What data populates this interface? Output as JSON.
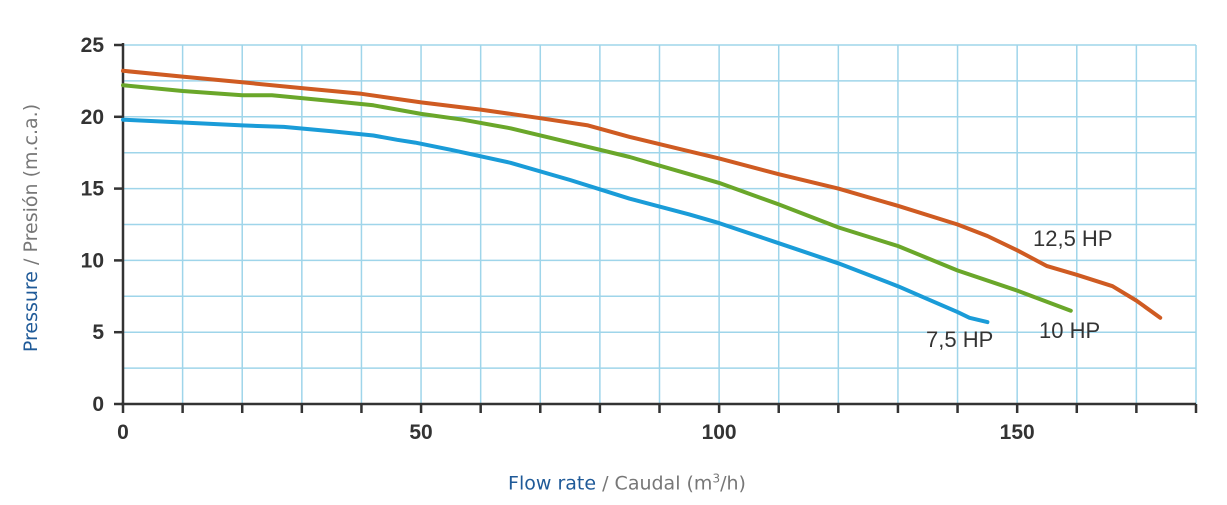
{
  "chart_data": {
    "type": "line",
    "xlabel": {
      "primary": "Flow rate",
      "separator": " / ",
      "secondary_before_sup": "Caudal (m",
      "secondary_sup": "3",
      "secondary_after_sup": "/h)"
    },
    "ylabel": {
      "primary": "Pressure",
      "separator": " / ",
      "secondary": "Presión (m.c.a.)"
    },
    "xlim": [
      0,
      180
    ],
    "ylim": [
      0,
      25
    ],
    "x_ticks": [
      0,
      50,
      100,
      150
    ],
    "x_minor_step": 10,
    "y_ticks": [
      0,
      5,
      10,
      15,
      20,
      25
    ],
    "grid": true,
    "series": [
      {
        "name": "7,5 HP",
        "color": "#1a9cd8",
        "points": [
          [
            0,
            19.8
          ],
          [
            10,
            19.6
          ],
          [
            20,
            19.4
          ],
          [
            27,
            19.3
          ],
          [
            35,
            19.0
          ],
          [
            42,
            18.7
          ],
          [
            46,
            18.4
          ],
          [
            49,
            18.2
          ],
          [
            55,
            17.7
          ],
          [
            65,
            16.8
          ],
          [
            75,
            15.6
          ],
          [
            85,
            14.3
          ],
          [
            95,
            13.2
          ],
          [
            100,
            12.6
          ],
          [
            110,
            11.2
          ],
          [
            120,
            9.8
          ],
          [
            130,
            8.2
          ],
          [
            135,
            7.3
          ],
          [
            140,
            6.4
          ],
          [
            142,
            6.0
          ],
          [
            145,
            5.7
          ]
        ]
      },
      {
        "name": "10 HP",
        "color": "#6aa72a",
        "points": [
          [
            0,
            22.2
          ],
          [
            10,
            21.8
          ],
          [
            20,
            21.5
          ],
          [
            25,
            21.5
          ],
          [
            35,
            21.1
          ],
          [
            42,
            20.8
          ],
          [
            50,
            20.2
          ],
          [
            57,
            19.8
          ],
          [
            65,
            19.2
          ],
          [
            75,
            18.2
          ],
          [
            85,
            17.2
          ],
          [
            95,
            16.0
          ],
          [
            100,
            15.4
          ],
          [
            110,
            13.9
          ],
          [
            120,
            12.3
          ],
          [
            130,
            11.0
          ],
          [
            140,
            9.3
          ],
          [
            150,
            7.9
          ],
          [
            159,
            6.5
          ]
        ]
      },
      {
        "name": "12,5 HP",
        "color": "#cf5b22",
        "points": [
          [
            0,
            23.2
          ],
          [
            10,
            22.8
          ],
          [
            20,
            22.4
          ],
          [
            30,
            22.0
          ],
          [
            40,
            21.6
          ],
          [
            50,
            21.0
          ],
          [
            60,
            20.5
          ],
          [
            70,
            19.9
          ],
          [
            78,
            19.4
          ],
          [
            85,
            18.6
          ],
          [
            95,
            17.6
          ],
          [
            100,
            17.1
          ],
          [
            110,
            16.0
          ],
          [
            120,
            15.0
          ],
          [
            130,
            13.8
          ],
          [
            140,
            12.5
          ],
          [
            145,
            11.7
          ],
          [
            150,
            10.7
          ],
          [
            155,
            9.6
          ],
          [
            160,
            9.0
          ],
          [
            166,
            8.2
          ],
          [
            170,
            7.2
          ],
          [
            174,
            6.0
          ]
        ]
      }
    ]
  },
  "series_labels": [
    "7,5 HP",
    "10 HP",
    "12,5 HP"
  ]
}
